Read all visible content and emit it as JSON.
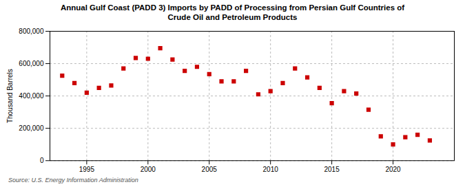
{
  "chart_data": {
    "type": "scatter",
    "title": "Annual Gulf Coast (PADD 3) Imports by PADD of Processing from Persian Gulf Countries of\nCrude Oil and Petroleum Products",
    "ylabel": "Thousand Barrels",
    "source": "Source: U.S. Energy Information Administration",
    "x": [
      1993,
      1994,
      1995,
      1996,
      1997,
      1998,
      1999,
      2000,
      2001,
      2002,
      2003,
      2004,
      2005,
      2006,
      2007,
      2008,
      2009,
      2010,
      2011,
      2012,
      2013,
      2014,
      2015,
      2016,
      2017,
      2018,
      2019,
      2020,
      2021,
      2022,
      2023
    ],
    "values": [
      525000,
      480000,
      420000,
      450000,
      465000,
      570000,
      635000,
      630000,
      695000,
      625000,
      555000,
      580000,
      535000,
      490000,
      490000,
      555000,
      410000,
      430000,
      480000,
      570000,
      515000,
      450000,
      355000,
      430000,
      415000,
      315000,
      150000,
      100000,
      145000,
      160000,
      125000
    ],
    "color": "#cc0000",
    "marker": "square",
    "xlim": [
      1992,
      2025
    ],
    "ylim": [
      0,
      800000
    ],
    "xticks": [
      1995,
      2000,
      2005,
      2010,
      2015,
      2020
    ],
    "yticks": [
      0,
      {
        "value": 200000,
        "label": "200,000"
      },
      {
        "value": 400000,
        "label": "400,000"
      },
      {
        "value": 600000,
        "label": "600,000"
      },
      {
        "value": 800000,
        "label": "800,000"
      }
    ],
    "grid": true
  }
}
